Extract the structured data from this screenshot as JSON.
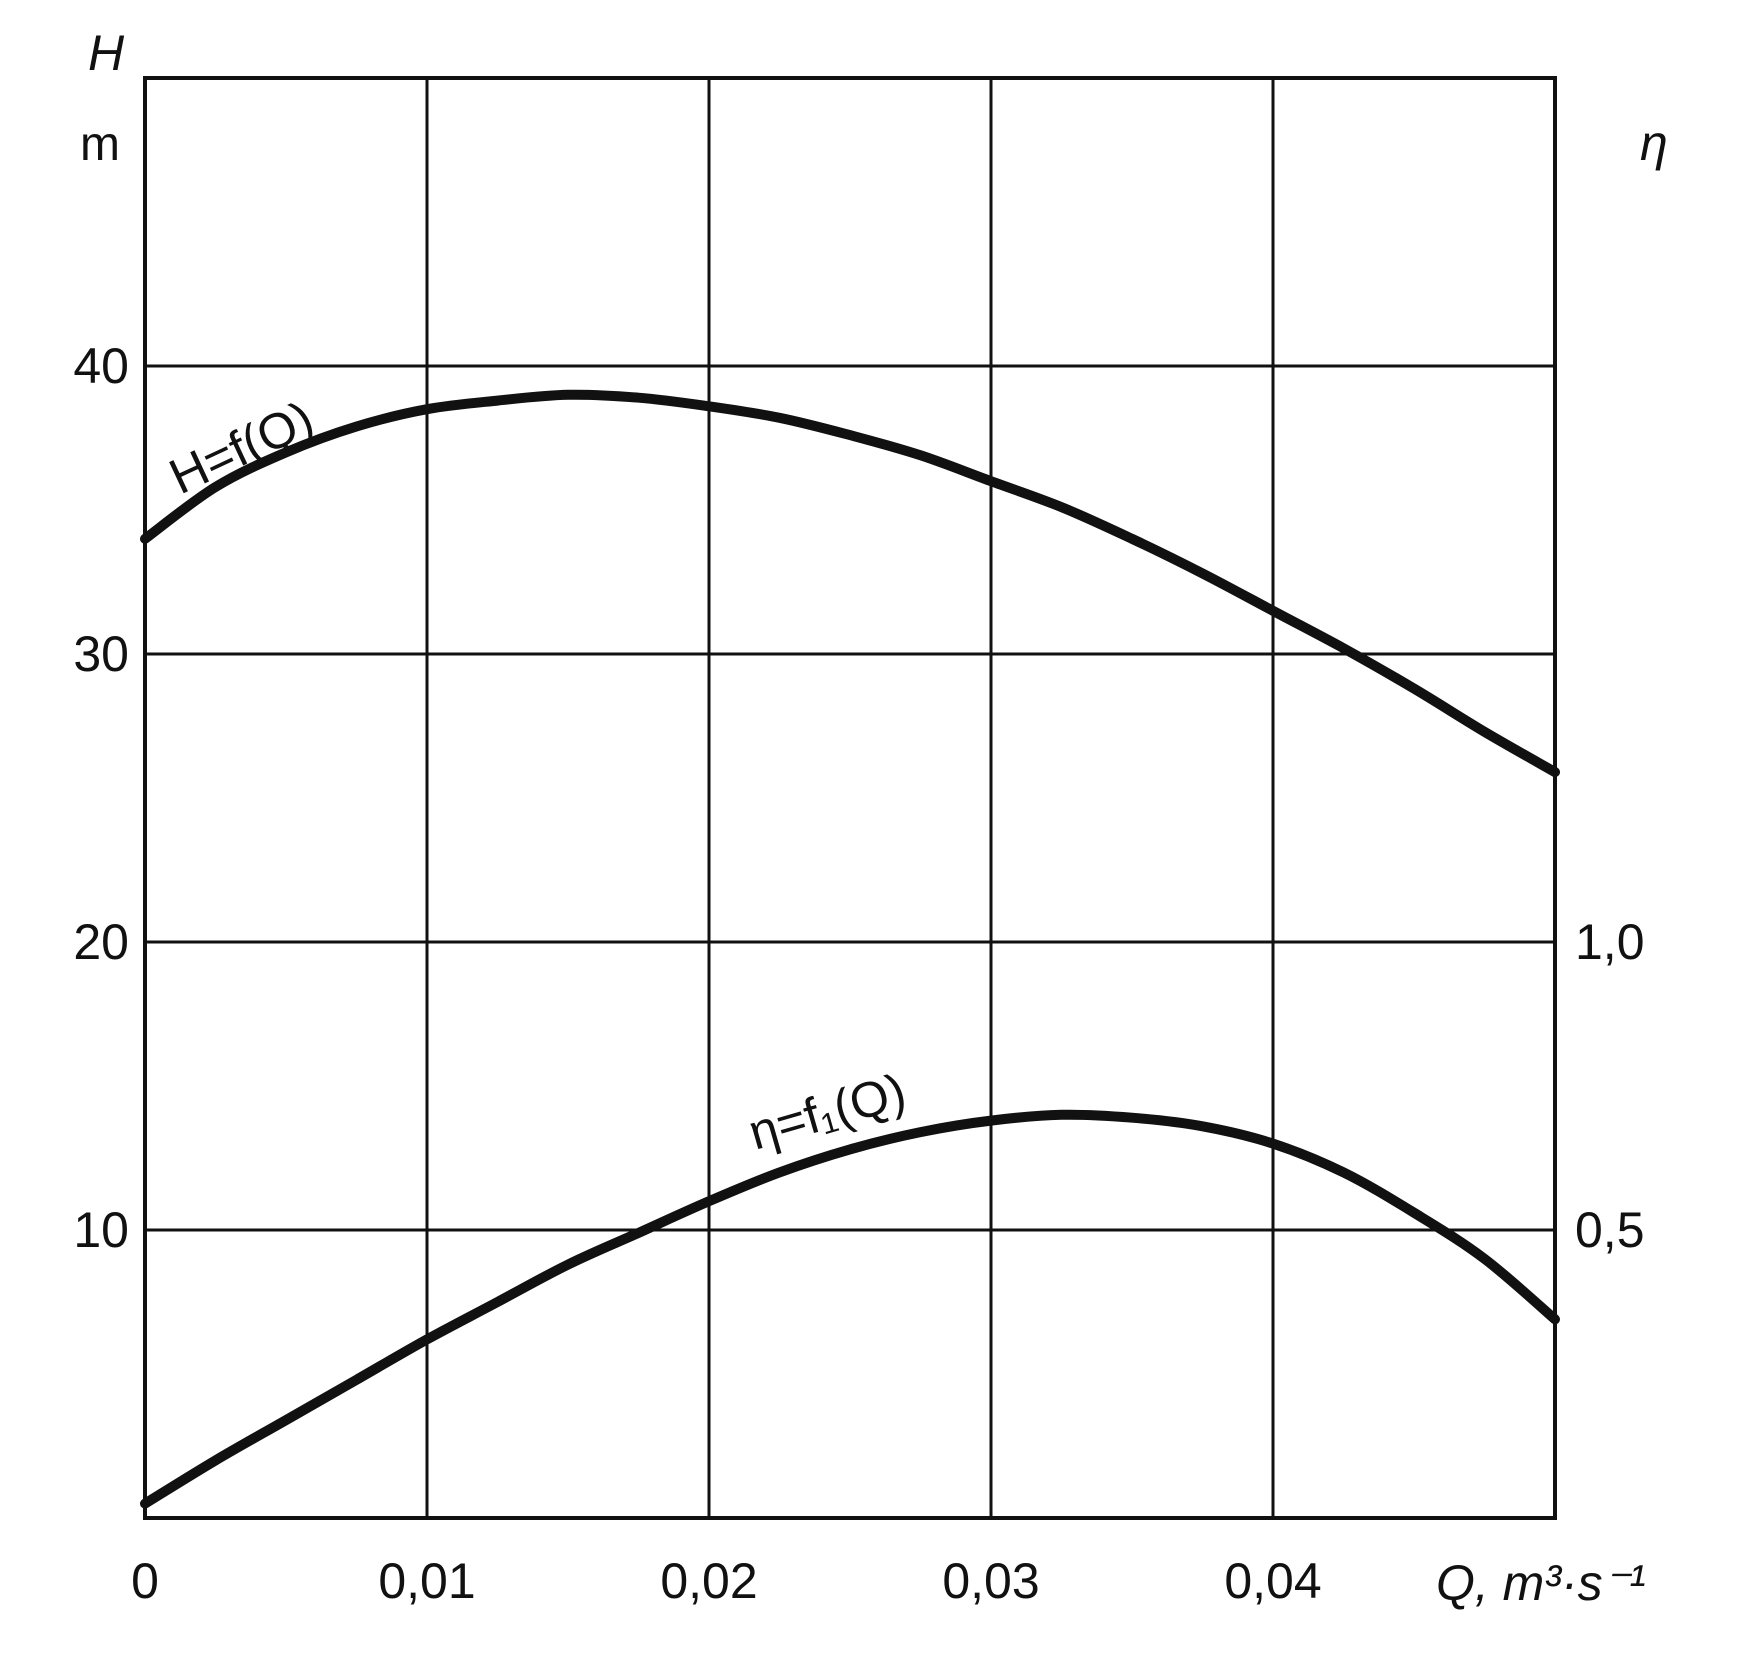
{
  "chart_data": {
    "type": "line",
    "x": [
      0,
      0.0025,
      0.005,
      0.0075,
      0.01,
      0.0125,
      0.015,
      0.0175,
      0.02,
      0.0225,
      0.025,
      0.0275,
      0.03,
      0.0325,
      0.035,
      0.0375,
      0.04,
      0.0425,
      0.045,
      0.0475,
      0.05
    ],
    "xlim": [
      0,
      0.05
    ],
    "x_ticks": [
      "0",
      "0,01",
      "0,02",
      "0,03",
      "0,04"
    ],
    "x_tick_values": [
      0,
      0.01,
      0.02,
      0.03,
      0.04
    ],
    "xlabel": "Q, m³·s⁻¹",
    "y_left": {
      "label": "H",
      "unit": "m",
      "lim": [
        0,
        50
      ],
      "ticks": [
        "10",
        "20",
        "30",
        "40"
      ],
      "tick_values": [
        10,
        20,
        30,
        40
      ]
    },
    "y_right": {
      "label": "η",
      "lim": [
        0,
        2.5
      ],
      "ticks": [
        "0,5",
        "1,0"
      ],
      "tick_values": [
        0.5,
        1.0
      ]
    },
    "grid": true,
    "series": [
      {
        "name": "H=f(Q)",
        "axis": "left",
        "values": [
          34.0,
          35.8,
          37.0,
          37.9,
          38.5,
          38.8,
          39.0,
          38.9,
          38.6,
          38.2,
          37.6,
          36.9,
          36.0,
          35.1,
          34.0,
          32.8,
          31.5,
          30.2,
          28.8,
          27.3,
          25.9
        ]
      },
      {
        "name": "η=f₁(Q)",
        "axis": "left",
        "values": [
          0.5,
          2.0,
          3.4,
          4.8,
          6.2,
          7.5,
          8.8,
          9.9,
          11.0,
          12.0,
          12.8,
          13.4,
          13.8,
          14.0,
          13.9,
          13.6,
          13.0,
          12.0,
          10.6,
          9.0,
          6.9
        ]
      }
    ]
  }
}
